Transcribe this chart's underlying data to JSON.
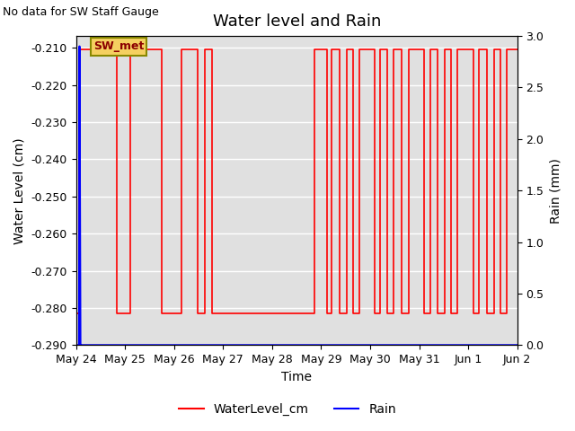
{
  "title": "Water level and Rain",
  "top_left_text": "No data for SW Staff Gauge",
  "xlabel": "Time",
  "ylabel_left": "Water Level (cm)",
  "ylabel_right": "Rain (mm)",
  "ylim_left": [
    -0.29,
    -0.2068
  ],
  "ylim_right": [
    0.0,
    3.0
  ],
  "background_color": "#e0e0e0",
  "annotation_text": "SW_met",
  "legend_labels": [
    "WaterLevel_cm",
    "Rain"
  ],
  "legend_colors": [
    "red",
    "blue"
  ],
  "x_tick_labels": [
    "May 24",
    "May 25",
    "May 26",
    "May 27",
    "May 28",
    "May 29",
    "May 30",
    "May 31",
    "Jun 1",
    "Jun 2"
  ],
  "x_tick_positions": [
    0,
    1,
    2,
    3,
    4,
    5,
    6,
    7,
    8,
    9
  ],
  "total_days": 9,
  "water_high": -0.2105,
  "water_low": -0.2815,
  "wl_segments": [
    [
      0.0,
      -0.2815
    ],
    [
      0.07,
      -0.2815
    ],
    [
      0.07,
      -0.2105
    ],
    [
      0.83,
      -0.2105
    ],
    [
      0.83,
      -0.2815
    ],
    [
      1.1,
      -0.2815
    ],
    [
      1.1,
      -0.2105
    ],
    [
      1.75,
      -0.2105
    ],
    [
      1.75,
      -0.2815
    ],
    [
      2.15,
      -0.2815
    ],
    [
      2.15,
      -0.2105
    ],
    [
      2.48,
      -0.2105
    ],
    [
      2.48,
      -0.2815
    ],
    [
      2.63,
      -0.2815
    ],
    [
      2.63,
      -0.2105
    ],
    [
      2.78,
      -0.2105
    ],
    [
      2.78,
      -0.2815
    ],
    [
      4.87,
      -0.2815
    ],
    [
      4.87,
      -0.2105
    ],
    [
      5.12,
      -0.2105
    ],
    [
      5.12,
      -0.2815
    ],
    [
      5.22,
      -0.2815
    ],
    [
      5.22,
      -0.2105
    ],
    [
      5.38,
      -0.2105
    ],
    [
      5.38,
      -0.2815
    ],
    [
      5.52,
      -0.2815
    ],
    [
      5.52,
      -0.2105
    ],
    [
      5.65,
      -0.2105
    ],
    [
      5.65,
      -0.2815
    ],
    [
      5.78,
      -0.2815
    ],
    [
      5.78,
      -0.2105
    ],
    [
      6.1,
      -0.2105
    ],
    [
      6.1,
      -0.2815
    ],
    [
      6.2,
      -0.2815
    ],
    [
      6.2,
      -0.2105
    ],
    [
      6.35,
      -0.2105
    ],
    [
      6.35,
      -0.2815
    ],
    [
      6.48,
      -0.2815
    ],
    [
      6.48,
      -0.2105
    ],
    [
      6.65,
      -0.2105
    ],
    [
      6.65,
      -0.2815
    ],
    [
      6.78,
      -0.2815
    ],
    [
      6.78,
      -0.2105
    ],
    [
      7.1,
      -0.2105
    ],
    [
      7.1,
      -0.2815
    ],
    [
      7.22,
      -0.2815
    ],
    [
      7.22,
      -0.2105
    ],
    [
      7.38,
      -0.2105
    ],
    [
      7.38,
      -0.2815
    ],
    [
      7.52,
      -0.2815
    ],
    [
      7.52,
      -0.2105
    ],
    [
      7.65,
      -0.2105
    ],
    [
      7.65,
      -0.2815
    ],
    [
      7.78,
      -0.2815
    ],
    [
      7.78,
      -0.2105
    ],
    [
      8.1,
      -0.2105
    ],
    [
      8.1,
      -0.2815
    ],
    [
      8.22,
      -0.2815
    ],
    [
      8.22,
      -0.2105
    ],
    [
      8.38,
      -0.2105
    ],
    [
      8.38,
      -0.2815
    ],
    [
      8.52,
      -0.2815
    ],
    [
      8.52,
      -0.2105
    ],
    [
      8.65,
      -0.2105
    ],
    [
      8.65,
      -0.2815
    ],
    [
      8.78,
      -0.2815
    ],
    [
      8.78,
      -0.2105
    ],
    [
      9.0,
      -0.2105
    ]
  ],
  "rain_x": [
    0.0,
    0.06,
    0.07,
    0.09,
    0.1,
    9.0
  ],
  "rain_y": [
    0.0,
    0.0,
    2.9,
    0.0,
    0.0,
    0.0
  ]
}
